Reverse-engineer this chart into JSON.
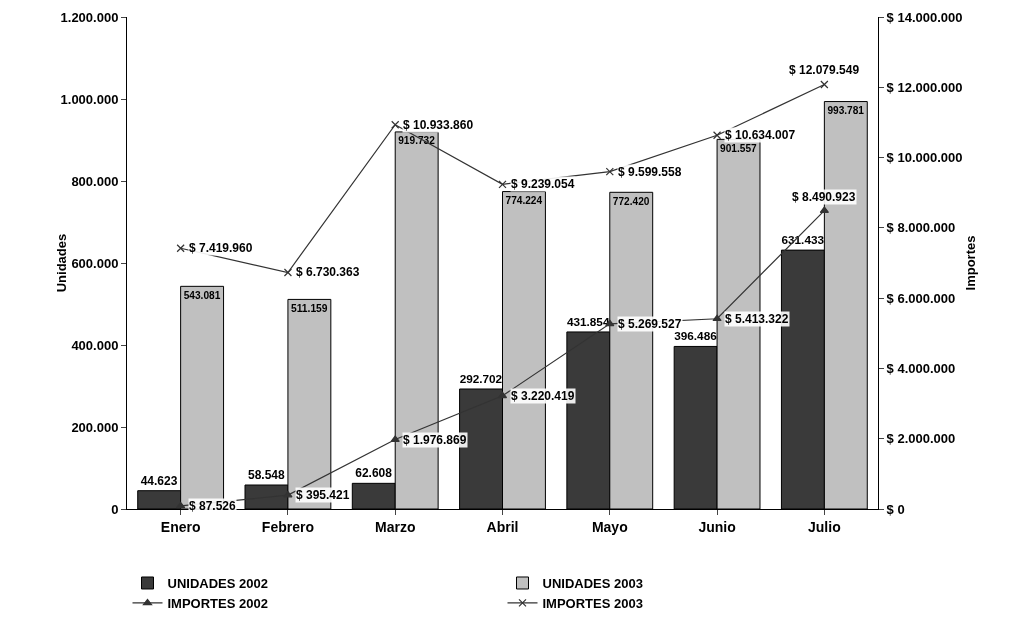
{
  "chart_data": {
    "type": "bar",
    "categories": [
      "Enero",
      "Febrero",
      "Marzo",
      "Abril",
      "Mayo",
      "Junio",
      "Julio"
    ],
    "ylabel": "Unidades",
    "y2label": "Importes",
    "ylim": [
      0,
      1200000
    ],
    "yticks": [
      {
        "value": 0,
        "label": "0"
      },
      {
        "value": 200000,
        "label": "200.000"
      },
      {
        "value": 400000,
        "label": "400.000"
      },
      {
        "value": 600000,
        "label": "600.000"
      },
      {
        "value": 800000,
        "label": "800.000"
      },
      {
        "value": 1000000,
        "label": "1.000.000"
      },
      {
        "value": 1200000,
        "label": "1.200.000"
      }
    ],
    "y2lim": [
      0,
      14000000
    ],
    "y2ticks": [
      {
        "value": 0,
        "label": "$ 0"
      },
      {
        "value": 2000000,
        "label": "$ 2.000.000"
      },
      {
        "value": 4000000,
        "label": "$ 4.000.000"
      },
      {
        "value": 6000000,
        "label": "$ 6.000.000"
      },
      {
        "value": 8000000,
        "label": "$ 8.000.000"
      },
      {
        "value": 10000000,
        "label": "$ 10.000.000"
      },
      {
        "value": 12000000,
        "label": "$ 12.000.000"
      },
      {
        "value": 14000000,
        "label": "$ 14.000.000"
      }
    ],
    "grid": false,
    "legend": "bottom",
    "series": [
      {
        "name": "UNIDADES 2002",
        "color": "#3a3a3a",
        "values": [
          44623,
          58548,
          62608,
          292702,
          431854,
          396486,
          631433
        ],
        "value_labels": [
          "44.623",
          "58.548",
          "62.608",
          "292.702",
          "431.854",
          "396.486",
          "631.433"
        ]
      },
      {
        "name": "UNIDADES 2003",
        "color": "#c0c0c0",
        "values": [
          543081,
          511159,
          919732,
          774224,
          772420,
          901557,
          993781
        ],
        "value_labels": [
          "543.081",
          "511.159",
          "919.732",
          "774.224",
          "772.420",
          "901.557",
          "993.781"
        ]
      },
      {
        "name": "IMPORTES 2002",
        "type": "line",
        "axis": "y2",
        "marker": "triangle",
        "color": "#333333",
        "values": [
          87526,
          395421,
          1976869,
          3220419,
          5269527,
          5413322,
          8490923
        ],
        "value_labels": [
          "$ 87.526",
          "$ 395.421",
          "$ 1.976.869",
          "$ 3.220.419",
          "$ 5.269.527",
          "$ 5.413.322",
          "$ 8.490.923"
        ]
      },
      {
        "name": "IMPORTES 2003",
        "type": "line",
        "axis": "y2",
        "marker": "cross",
        "color": "#333333",
        "values": [
          7419960,
          6730363,
          10933860,
          9239054,
          9599558,
          10634007,
          12079549
        ],
        "value_labels": [
          "$ 7.419.960",
          "$ 6.730.363",
          "$ 10.933.860",
          "$ 9.239.054",
          "$ 9.599.558",
          "$ 10.634.007",
          "$ 12.079.549"
        ]
      }
    ]
  }
}
